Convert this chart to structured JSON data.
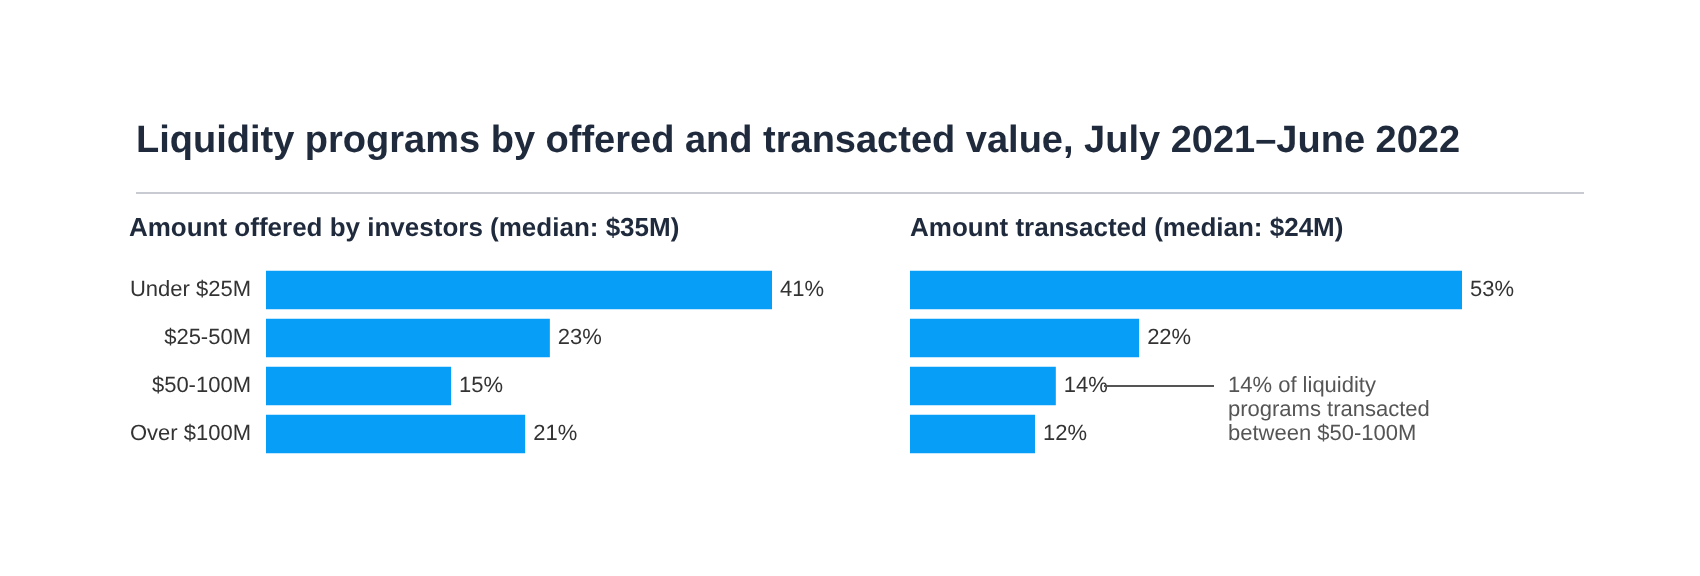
{
  "chart_data": [
    {
      "type": "bar",
      "orientation": "horizontal",
      "title": "Liquidity programs by offered and transacted value, July 2021–June 2022",
      "subtitle": "Amount offered by investors (median: $35M)",
      "categories": [
        "Under $25M",
        "$25-50M",
        "$50-100M",
        "Over $100M"
      ],
      "values": [
        41,
        23,
        15,
        21
      ],
      "value_labels": [
        "41%",
        "23%",
        "15%",
        "21%"
      ],
      "color": "#069ef7",
      "tick_labels": "y"
    },
    {
      "type": "bar",
      "orientation": "horizontal",
      "title": "Amount transacted (median: $24M)",
      "categories": [
        null,
        null,
        null,
        null
      ],
      "values": [
        53,
        22,
        14,
        12
      ],
      "value_labels": [
        "53%",
        "22%",
        "14%",
        "12%"
      ],
      "color": "#069ef7",
      "tick_labels": false,
      "annotations": [
        "14% of liquidity\nprograms transacted\nbetween $50-100M"
      ]
    }
  ]
}
